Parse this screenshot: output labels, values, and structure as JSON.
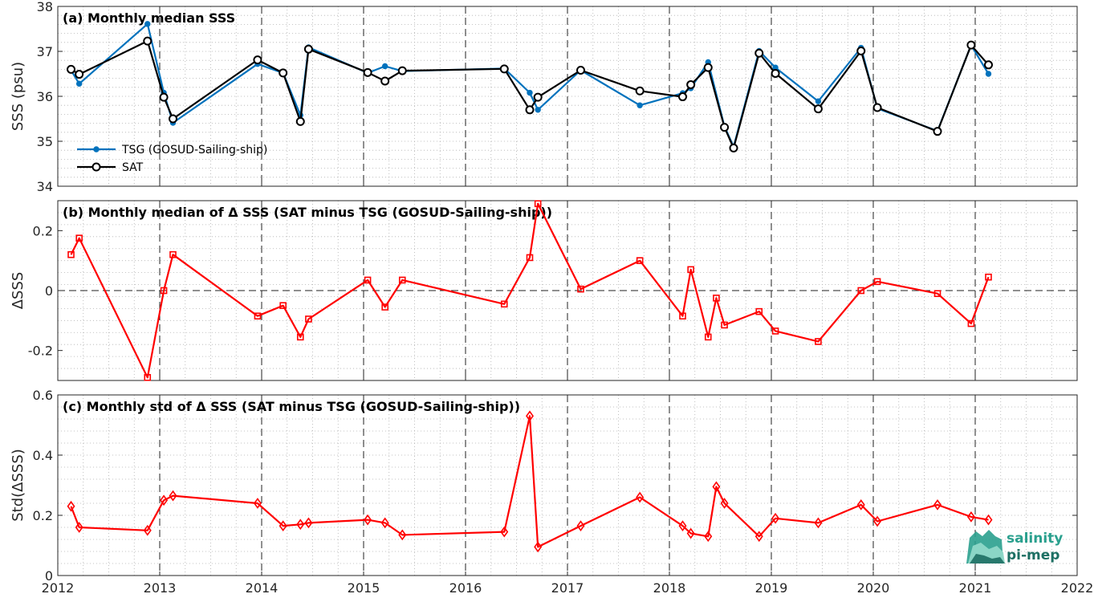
{
  "colors": {
    "tsg": "#0072BD",
    "sat": "#000000",
    "delta": "#FF0000",
    "grid": "#b0b0b0",
    "axis": "#262626"
  },
  "logo": {
    "line1": "salinity",
    "line2": "pi-mep"
  },
  "chart_data": [
    {
      "id": "a",
      "type": "line",
      "title": "(a) Monthly median SSS",
      "ylabel": "SSS (psu)",
      "xlim": [
        2012,
        2022
      ],
      "ylim": [
        34,
        38
      ],
      "yticks": [
        34,
        35,
        36,
        37,
        38
      ],
      "ytick_labels": [
        "34",
        "35",
        "36",
        "37",
        "38"
      ],
      "xticks": [
        2012,
        2013,
        2014,
        2015,
        2016,
        2017,
        2018,
        2019,
        2020,
        2021,
        2022
      ],
      "xtick_labels": [],
      "legend_position": "lower-left",
      "series": [
        {
          "name": "TSG (GOSUD-Sailing-ship)",
          "marker": "dot",
          "x": [
            2012.13,
            2012.21,
            2012.88,
            2013.04,
            2013.13,
            2013.96,
            2014.21,
            2014.38,
            2014.46,
            2015.04,
            2015.21,
            2015.38,
            2016.38,
            2016.63,
            2016.71,
            2017.13,
            2017.71,
            2018.13,
            2018.21,
            2018.38,
            2018.54,
            2018.63,
            2018.88,
            2019.04,
            2019.46,
            2019.88,
            2020.04,
            2020.63,
            2020.96,
            2021.13
          ],
          "y": [
            36.58,
            36.28,
            37.61,
            36.08,
            35.41,
            36.72,
            36.52,
            35.58,
            37.09,
            36.52,
            36.67,
            36.56,
            36.62,
            36.08,
            35.7,
            36.58,
            35.8,
            36.07,
            36.18,
            36.76,
            35.33,
            34.88,
            37.01,
            36.64,
            35.89,
            37.08,
            35.73,
            35.23,
            37.14,
            36.5
          ]
        },
        {
          "name": "SAT",
          "marker": "circle",
          "x": [
            2012.13,
            2012.21,
            2012.88,
            2013.04,
            2013.13,
            2013.96,
            2014.21,
            2014.38,
            2014.46,
            2015.04,
            2015.21,
            2015.38,
            2016.38,
            2016.63,
            2016.71,
            2017.13,
            2017.71,
            2018.13,
            2018.21,
            2018.38,
            2018.54,
            2018.63,
            2018.88,
            2019.04,
            2019.46,
            2019.88,
            2020.04,
            2020.63,
            2020.96,
            2021.13
          ],
          "y": [
            36.6,
            36.49,
            37.23,
            35.98,
            35.5,
            36.81,
            36.52,
            35.44,
            37.05,
            36.53,
            36.34,
            36.57,
            36.61,
            35.7,
            35.98,
            36.58,
            36.12,
            35.99,
            36.26,
            36.64,
            35.31,
            34.85,
            36.96,
            36.51,
            35.72,
            37.01,
            35.75,
            35.22,
            37.14,
            36.7
          ]
        }
      ]
    },
    {
      "id": "b",
      "type": "line",
      "title": "(b) Monthly median of Δ SSS (SAT minus TSG (GOSUD-Sailing-ship))",
      "ylabel": "ΔSSS",
      "xlim": [
        2012,
        2022
      ],
      "ylim": [
        -0.3,
        0.3
      ],
      "yticks": [
        -0.2,
        0,
        0.2
      ],
      "ytick_labels": [
        "-0.2",
        "0",
        "0.2"
      ],
      "xticks": [
        2012,
        2013,
        2014,
        2015,
        2016,
        2017,
        2018,
        2019,
        2020,
        2021,
        2022
      ],
      "xtick_labels": [],
      "zero_line": true,
      "series": [
        {
          "marker": "square",
          "x": [
            2012.13,
            2012.21,
            2012.88,
            2013.04,
            2013.13,
            2013.96,
            2014.21,
            2014.38,
            2014.46,
            2015.04,
            2015.21,
            2015.38,
            2016.38,
            2016.63,
            2016.71,
            2017.13,
            2017.71,
            2018.13,
            2018.21,
            2018.38,
            2018.46,
            2018.54,
            2018.88,
            2019.04,
            2019.46,
            2019.88,
            2020.04,
            2020.63,
            2020.96,
            2021.13
          ],
          "y": [
            0.12,
            0.175,
            -0.29,
            0.0,
            0.12,
            -0.085,
            -0.05,
            -0.155,
            -0.095,
            0.035,
            -0.055,
            0.035,
            -0.045,
            0.11,
            0.29,
            0.005,
            0.1,
            -0.085,
            0.07,
            -0.155,
            -0.025,
            -0.115,
            -0.07,
            -0.135,
            -0.17,
            0.0,
            0.03,
            -0.01,
            -0.11,
            0.045
          ]
        }
      ]
    },
    {
      "id": "c",
      "type": "line",
      "title": "(c) Monthly std of Δ SSS (SAT minus TSG (GOSUD-Sailing-ship))",
      "ylabel": "Std(ΔSSS)",
      "xlim": [
        2012,
        2022
      ],
      "ylim": [
        0,
        0.6
      ],
      "yticks": [
        0,
        0.2,
        0.4,
        0.6
      ],
      "ytick_labels": [
        "0",
        "0.2",
        "0.4",
        "0.6"
      ],
      "xticks": [
        2012,
        2013,
        2014,
        2015,
        2016,
        2017,
        2018,
        2019,
        2020,
        2021,
        2022
      ],
      "xtick_labels": [
        "2012",
        "2013",
        "2014",
        "2015",
        "2016",
        "2017",
        "2018",
        "2019",
        "2020",
        "2021",
        "2022"
      ],
      "series": [
        {
          "marker": "diamond",
          "x": [
            2012.13,
            2012.21,
            2012.88,
            2013.04,
            2013.13,
            2013.96,
            2014.21,
            2014.38,
            2014.46,
            2015.04,
            2015.21,
            2015.38,
            2016.38,
            2016.63,
            2016.71,
            2017.13,
            2017.71,
            2018.13,
            2018.21,
            2018.38,
            2018.46,
            2018.54,
            2018.88,
            2019.04,
            2019.46,
            2019.88,
            2020.04,
            2020.63,
            2020.96,
            2021.13
          ],
          "y": [
            0.23,
            0.16,
            0.15,
            0.25,
            0.265,
            0.24,
            0.165,
            0.17,
            0.175,
            0.185,
            0.175,
            0.135,
            0.145,
            0.53,
            0.095,
            0.165,
            0.26,
            0.165,
            0.14,
            0.13,
            0.295,
            0.24,
            0.13,
            0.19,
            0.175,
            0.235,
            0.18,
            0.235,
            0.195,
            0.185
          ]
        }
      ]
    }
  ]
}
